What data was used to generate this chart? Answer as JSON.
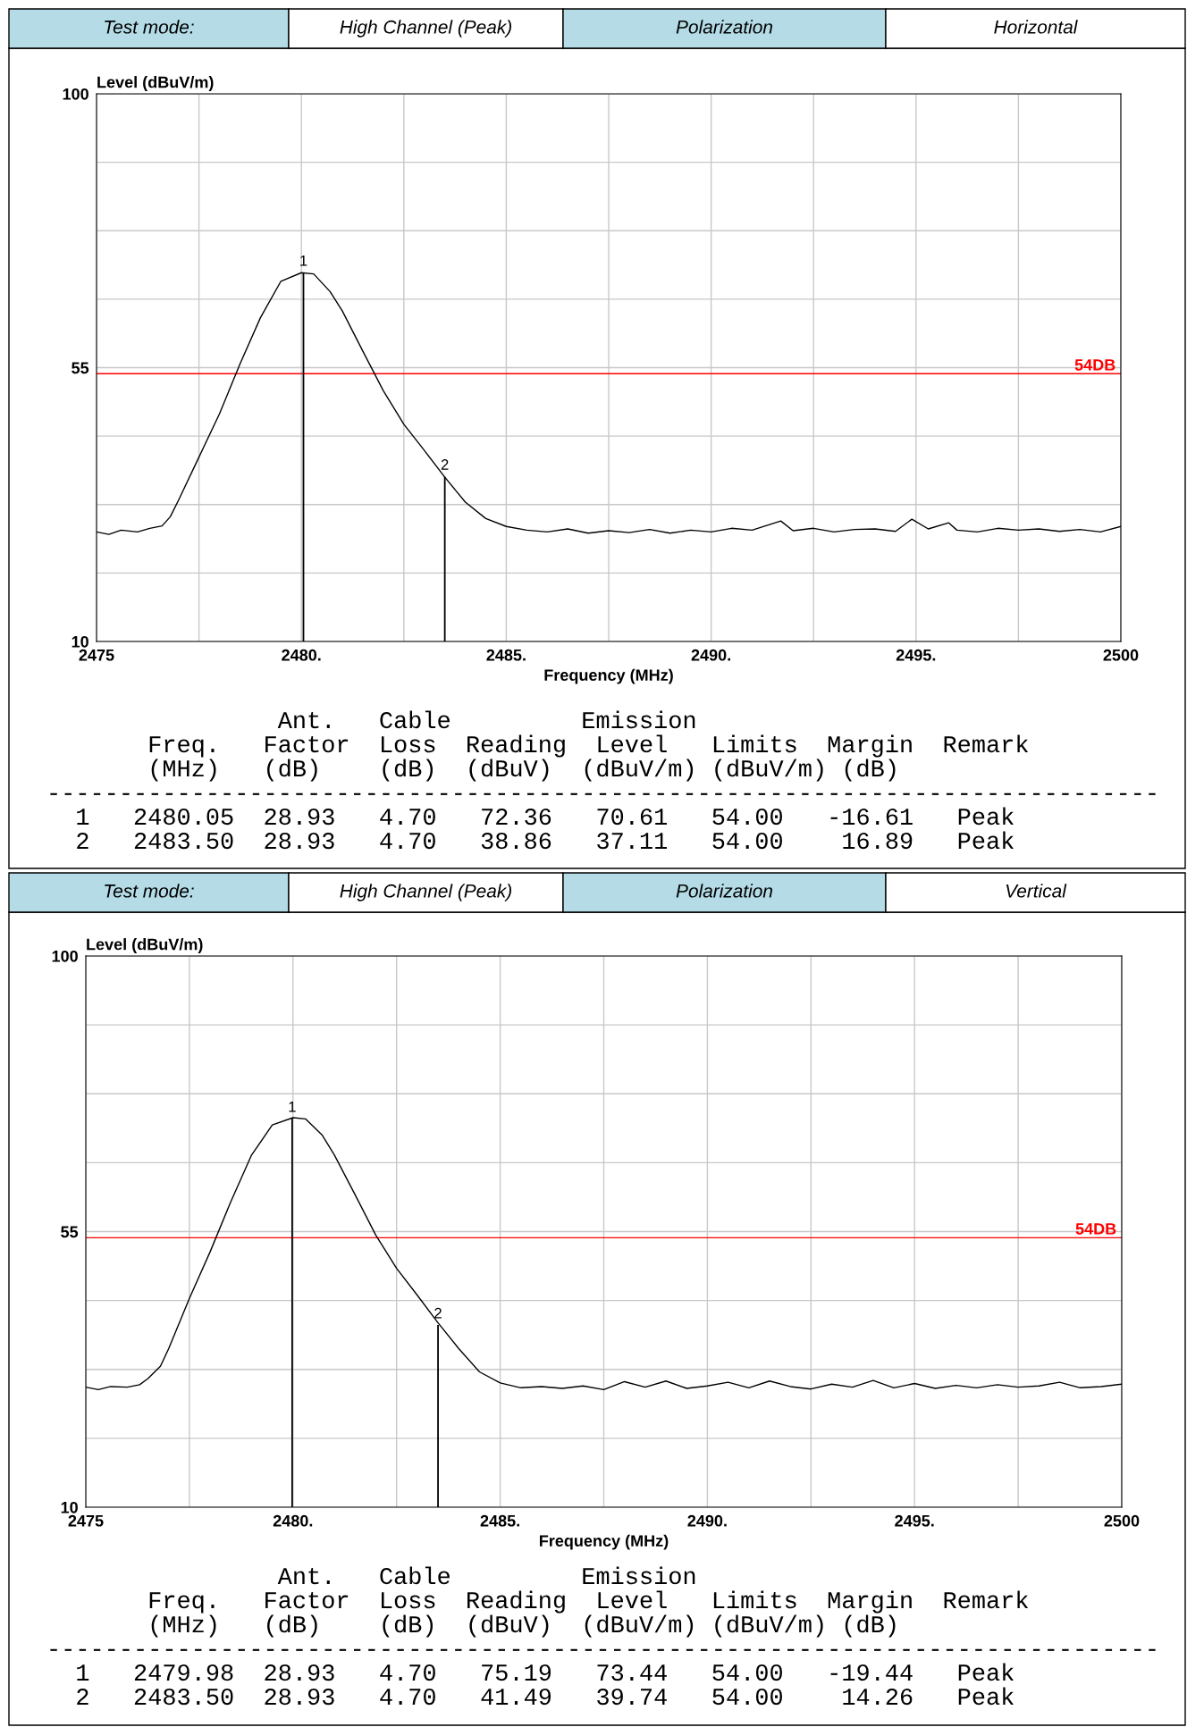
{
  "chart_data": [
    {
      "type": "line",
      "xlabel": "Frequency (MHz)",
      "ylabel": "Level (dBuV/m)",
      "grid": true,
      "marker": "none",
      "line_style": "solid",
      "annotations": [
        "Test mode:",
        "High Channel (Peak)",
        "Polarization",
        "Horizontal",
        {
          "text": "1",
          "x": 2480.05,
          "y": 70.61
        },
        {
          "text": "2",
          "x": 2483.5,
          "y": 37.11
        },
        "                Ant.   Cable         Emission",
        "       Freq.   Factor  Loss  Reading  Level   Limits  Margin  Remark",
        "       (MHz)   (dB)    (dB)  (dBuV)  (dBuV/m) (dBuV/m) (dB)",
        "-----------------------------------------------------------------------------",
        "  1   2480.05  28.93   4.70   72.36   70.61   54.00   -16.61   Peak",
        "  2   2483.50  28.93   4.70   38.86   37.11   54.00    16.89   Peak"
      ],
      "x": [
        2475,
        2475.3,
        2475.6,
        2476,
        2476.3,
        2476.6,
        2476.8,
        2477,
        2477.5,
        2478,
        2478.5,
        2479,
        2479.5,
        2480,
        2480.3,
        2480.7,
        2481,
        2481.5,
        2482,
        2482.5,
        2483,
        2483.5,
        2484,
        2484.5,
        2485,
        2485.5,
        2486,
        2486.5,
        2487,
        2487.5,
        2488,
        2488.5,
        2489,
        2489.5,
        2490,
        2490.5,
        2491,
        2491.7,
        2492,
        2492.5,
        2493,
        2493.5,
        2494,
        2494.5,
        2494.9,
        2495.3,
        2495.8,
        2496,
        2496.5,
        2497,
        2497.5,
        2498,
        2498.5,
        2499,
        2499.5,
        2500
      ],
      "series": [
        {
          "color": "#000000",
          "values": [
            28.0,
            27.6,
            28.3,
            28.0,
            28.6,
            29.0,
            30.5,
            33.2,
            40.3,
            47.4,
            55.6,
            63.2,
            69.2,
            70.6,
            70.4,
            67.5,
            64.3,
            57.7,
            51.2,
            45.7,
            41.4,
            37.0,
            32.9,
            30.2,
            28.9,
            28.3,
            28.0,
            28.5,
            27.8,
            28.2,
            27.9,
            28.4,
            27.8,
            28.3,
            28.0,
            28.6,
            28.3,
            29.8,
            28.2,
            28.6,
            28.0,
            28.4,
            28.5,
            28.1,
            30.1,
            28.5,
            29.5,
            28.3,
            28.0,
            28.6,
            28.3,
            28.5,
            28.1,
            28.4,
            28.0,
            28.9
          ]
        }
      ],
      "xlim": [
        2475,
        2500
      ],
      "ylim": [
        10,
        100
      ],
      "xticks": [
        {
          "value": 2475,
          "label": "2475"
        },
        {
          "value": 2477.5,
          "label": null
        },
        {
          "value": 2480,
          "label": "2480."
        },
        {
          "value": 2482.5,
          "label": null
        },
        {
          "value": 2485,
          "label": "2485."
        },
        {
          "value": 2487.5,
          "label": null
        },
        {
          "value": 2490,
          "label": "2490."
        },
        {
          "value": 2492.5,
          "label": null
        },
        {
          "value": 2495,
          "label": "2495."
        },
        {
          "value": 2497.5,
          "label": null
        },
        {
          "value": 2500,
          "label": "2500"
        }
      ],
      "yticks": [
        10,
        {
          "value": 21.25,
          "label": null
        },
        {
          "value": 32.5,
          "label": null
        },
        {
          "value": 43.75,
          "label": null
        },
        55,
        {
          "value": 66.25,
          "label": null
        },
        {
          "value": 77.5,
          "label": null
        },
        {
          "value": 88.75,
          "label": null
        },
        100
      ],
      "ref_lines": [
        {
          "axis": "y",
          "value": 54,
          "label": "54DB",
          "color": "#ff0000"
        }
      ]
    },
    {
      "type": "line",
      "xlabel": "Frequency (MHz)",
      "ylabel": "Level (dBuV/m)",
      "grid": true,
      "marker": "none",
      "line_style": "solid",
      "annotations": [
        "Test mode:",
        "High Channel (Peak)",
        "Polarization",
        "Vertical",
        {
          "text": "1",
          "x": 2479.98,
          "y": 73.44
        },
        {
          "text": "2",
          "x": 2483.5,
          "y": 39.74
        },
        "                Ant.   Cable         Emission",
        "       Freq.   Factor  Loss  Reading  Level   Limits  Margin  Remark",
        "       (MHz)   (dB)    (dB)  (dBuV)  (dBuV/m) (dBuV/m) (dB)",
        "-----------------------------------------------------------------------------",
        "  1   2479.98  28.93   4.70   75.19   73.44   54.00   -19.44   Peak",
        "  2   2483.50  28.93   4.70   41.49   39.74   54.00    14.26   Peak"
      ],
      "x": [
        2475,
        2475.3,
        2475.6,
        2476,
        2476.3,
        2476.5,
        2476.8,
        2477,
        2477.5,
        2478,
        2478.5,
        2479,
        2479.5,
        2480,
        2480.3,
        2480.7,
        2481,
        2481.5,
        2482,
        2482.5,
        2483,
        2483.5,
        2484,
        2484.5,
        2485,
        2485.5,
        2486,
        2486.5,
        2487,
        2487.5,
        2488,
        2488.5,
        2489,
        2489.5,
        2490,
        2490.5,
        2491,
        2491.5,
        2492,
        2492.5,
        2493,
        2493.5,
        2494,
        2494.5,
        2495,
        2495.5,
        2496,
        2496.5,
        2497,
        2497.5,
        2498,
        2498.5,
        2499,
        2499.5,
        2500
      ],
      "series": [
        {
          "color": "#000000",
          "values": [
            29.6,
            29.2,
            29.7,
            29.6,
            30.0,
            31.0,
            33.0,
            35.9,
            44.1,
            51.7,
            59.9,
            67.5,
            72.4,
            73.6,
            73.4,
            70.8,
            67.5,
            61.0,
            54.4,
            49.0,
            44.6,
            40.1,
            35.9,
            32.1,
            30.3,
            29.5,
            29.7,
            29.4,
            29.8,
            29.2,
            30.5,
            29.6,
            30.6,
            29.4,
            29.8,
            30.4,
            29.5,
            30.6,
            29.7,
            29.3,
            30.1,
            29.6,
            30.7,
            29.5,
            30.2,
            29.4,
            29.9,
            29.5,
            30.0,
            29.6,
            29.8,
            30.4,
            29.5,
            29.7,
            30.1
          ]
        }
      ],
      "xlim": [
        2475,
        2500
      ],
      "ylim": [
        10,
        100
      ],
      "xticks": [
        {
          "value": 2475,
          "label": "2475"
        },
        {
          "value": 2477.5,
          "label": null
        },
        {
          "value": 2480,
          "label": "2480."
        },
        {
          "value": 2482.5,
          "label": null
        },
        {
          "value": 2485,
          "label": "2485."
        },
        {
          "value": 2487.5,
          "label": null
        },
        {
          "value": 2490,
          "label": "2490."
        },
        {
          "value": 2492.5,
          "label": null
        },
        {
          "value": 2495,
          "label": "2495."
        },
        {
          "value": 2497.5,
          "label": null
        },
        {
          "value": 2500,
          "label": "2500"
        }
      ],
      "yticks": [
        10,
        {
          "value": 21.25,
          "label": null
        },
        {
          "value": 32.5,
          "label": null
        },
        {
          "value": 43.75,
          "label": null
        },
        55,
        {
          "value": 66.25,
          "label": null
        },
        {
          "value": 77.5,
          "label": null
        },
        {
          "value": 88.75,
          "label": null
        },
        100
      ],
      "ref_lines": [
        {
          "axis": "y",
          "value": 54,
          "label": "54DB",
          "color": "#ff0000"
        }
      ]
    }
  ]
}
